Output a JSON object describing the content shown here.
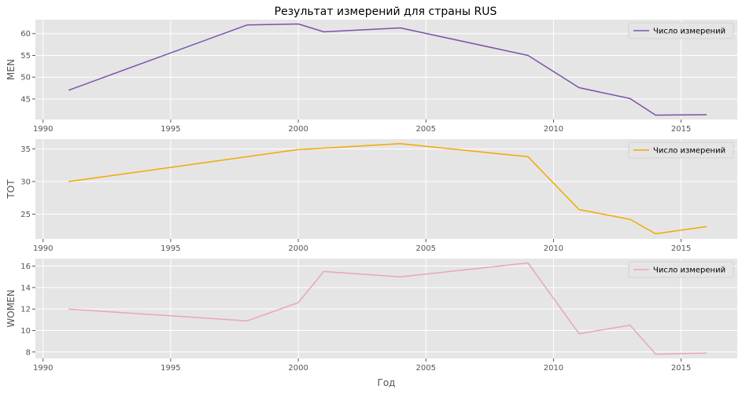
{
  "title": "Результат измерений для страны RUS",
  "chart_data": [
    {
      "type": "line",
      "ylabel": "MEN",
      "xlabel": "",
      "xlim": [
        1989.7,
        2017.2
      ],
      "ylim": [
        40.3,
        63.2
      ],
      "xticks": [
        1990,
        1995,
        2000,
        2005,
        2010,
        2015
      ],
      "yticks": [
        45,
        50,
        55,
        60
      ],
      "grid": true,
      "legend": "top-right",
      "series": [
        {
          "name": "Число измерений",
          "color": "#7b52ab",
          "x": [
            1991,
            1998,
            2000,
            2001,
            2004,
            2009,
            2011,
            2013,
            2014,
            2016
          ],
          "y": [
            47.0,
            62.0,
            62.2,
            60.4,
            61.3,
            55.0,
            47.6,
            45.1,
            41.3,
            41.4
          ]
        }
      ]
    },
    {
      "type": "line",
      "ylabel": "TOT",
      "xlabel": "",
      "xlim": [
        1989.7,
        2017.2
      ],
      "ylim": [
        21.2,
        36.5
      ],
      "xticks": [
        1990,
        1995,
        2000,
        2005,
        2010,
        2015
      ],
      "yticks": [
        25,
        30,
        35
      ],
      "grid": true,
      "legend": "top-right",
      "series": [
        {
          "name": "Число измерений",
          "color": "#f2a900",
          "x": [
            1991,
            2000,
            2004,
            2009,
            2011,
            2013,
            2014,
            2016
          ],
          "y": [
            30.0,
            34.9,
            35.8,
            33.8,
            25.7,
            24.2,
            22.0,
            23.1
          ]
        }
      ]
    },
    {
      "type": "line",
      "ylabel": "WOMEN",
      "xlabel": "Год",
      "xlim": [
        1989.7,
        2017.2
      ],
      "ylim": [
        7.4,
        16.7
      ],
      "xticks": [
        1990,
        1995,
        2000,
        2005,
        2010,
        2015
      ],
      "yticks": [
        8,
        10,
        12,
        14,
        16
      ],
      "grid": true,
      "legend": "top-right",
      "series": [
        {
          "name": "Число измерений",
          "color": "#e8a5c0",
          "x": [
            1991,
            1998,
            2000,
            2001,
            2004,
            2009,
            2011,
            2013,
            2014,
            2016
          ],
          "y": [
            12.0,
            10.9,
            12.6,
            15.5,
            15.0,
            16.3,
            9.7,
            10.5,
            7.8,
            7.9
          ]
        }
      ]
    }
  ]
}
